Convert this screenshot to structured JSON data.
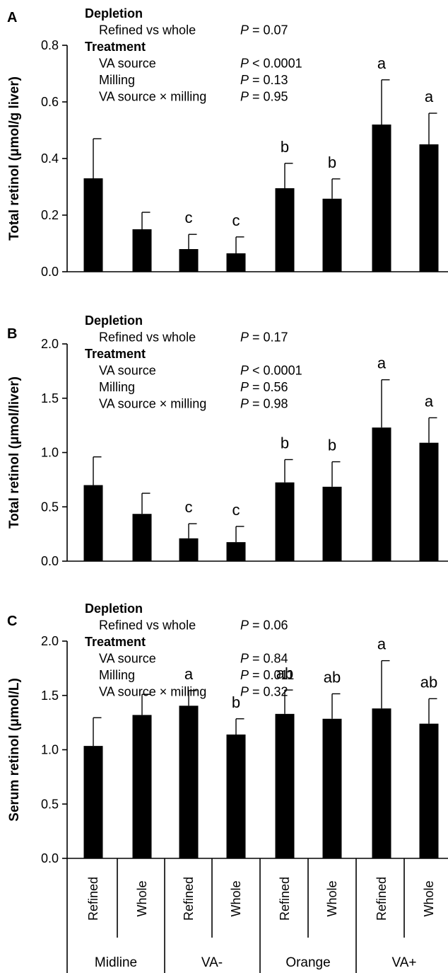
{
  "chart_data": [
    {
      "type": "bar",
      "panel": "A",
      "ylabel": "Total retinol (μmol/g liver)",
      "ylim": [
        0,
        0.8
      ],
      "yticks": [
        0.0,
        0.2,
        0.4,
        0.6,
        0.8
      ],
      "tick_decimals": 1,
      "values": [
        0.33,
        0.15,
        0.08,
        0.065,
        0.295,
        0.258,
        0.52,
        0.45
      ],
      "errors": [
        0.14,
        0.06,
        0.052,
        0.058,
        0.088,
        0.07,
        0.158,
        0.11
      ],
      "sig_labels": [
        "",
        "",
        "c",
        "c",
        "b",
        "b",
        "a",
        "a"
      ],
      "stats": {
        "depletion_heading": "Depletion",
        "treatment_heading": "Treatment",
        "rows": [
          {
            "label": "Refined vs whole",
            "p": "P",
            "value": " = 0.07"
          },
          {
            "label": "VA source",
            "p": "P",
            "value": " < 0.0001"
          },
          {
            "label": "Milling",
            "p": "P",
            "value": " = 0.13"
          },
          {
            "label": "VA source × milling",
            "p": "P",
            "value": " = 0.95"
          }
        ]
      }
    },
    {
      "type": "bar",
      "panel": "B",
      "ylabel": "Total retinol (μmol/liver)",
      "ylim": [
        0,
        2.0
      ],
      "yticks": [
        0.0,
        0.5,
        1.0,
        1.5,
        2.0
      ],
      "tick_decimals": 1,
      "values": [
        0.7,
        0.435,
        0.21,
        0.175,
        0.725,
        0.685,
        1.23,
        1.09
      ],
      "errors": [
        0.26,
        0.19,
        0.135,
        0.145,
        0.21,
        0.23,
        0.44,
        0.23
      ],
      "sig_labels": [
        "",
        "",
        "c",
        "c",
        "b",
        "b",
        "a",
        "a"
      ],
      "stats": {
        "depletion_heading": "Depletion",
        "treatment_heading": "Treatment",
        "rows": [
          {
            "label": "Refined vs whole",
            "p": "P",
            "value": " = 0.17"
          },
          {
            "label": "VA source",
            "p": "P",
            "value": " < 0.0001"
          },
          {
            "label": "Milling",
            "p": "P",
            "value": " = 0.56"
          },
          {
            "label": "VA source × milling",
            "p": "P",
            "value": " = 0.98"
          }
        ]
      }
    },
    {
      "type": "bar",
      "panel": "C",
      "ylabel": "Serum retinol (μmol/L)",
      "ylim": [
        0,
        2.0
      ],
      "yticks": [
        0.0,
        0.5,
        1.0,
        1.5,
        2.0
      ],
      "tick_decimals": 1,
      "values": [
        1.035,
        1.32,
        1.405,
        1.14,
        1.33,
        1.285,
        1.38,
        1.24
      ],
      "errors": [
        0.26,
        0.19,
        0.14,
        0.145,
        0.22,
        0.23,
        0.44,
        0.23
      ],
      "sig_labels": [
        "",
        "",
        "a",
        "b",
        "ab",
        "ab",
        "a",
        "ab"
      ],
      "stats": {
        "depletion_heading": "Depletion",
        "treatment_heading": "Treatment",
        "rows": [
          {
            "label": "Refined vs whole",
            "p": "P",
            "value": " = 0.06"
          },
          {
            "label": "VA source",
            "p": "P",
            "value": " = 0.84"
          },
          {
            "label": "Milling",
            "p": "P",
            "value": " = 0.011"
          },
          {
            "label": "VA source × milling",
            "p": "P",
            "value": " = 0.32"
          }
        ]
      }
    }
  ],
  "categories": [
    "Refined",
    "Whole",
    "Refined",
    "Whole",
    "Refined",
    "Whole",
    "Refined",
    "Whole"
  ],
  "groups": [
    "Midline",
    "VA-",
    "Orange",
    "VA+"
  ]
}
